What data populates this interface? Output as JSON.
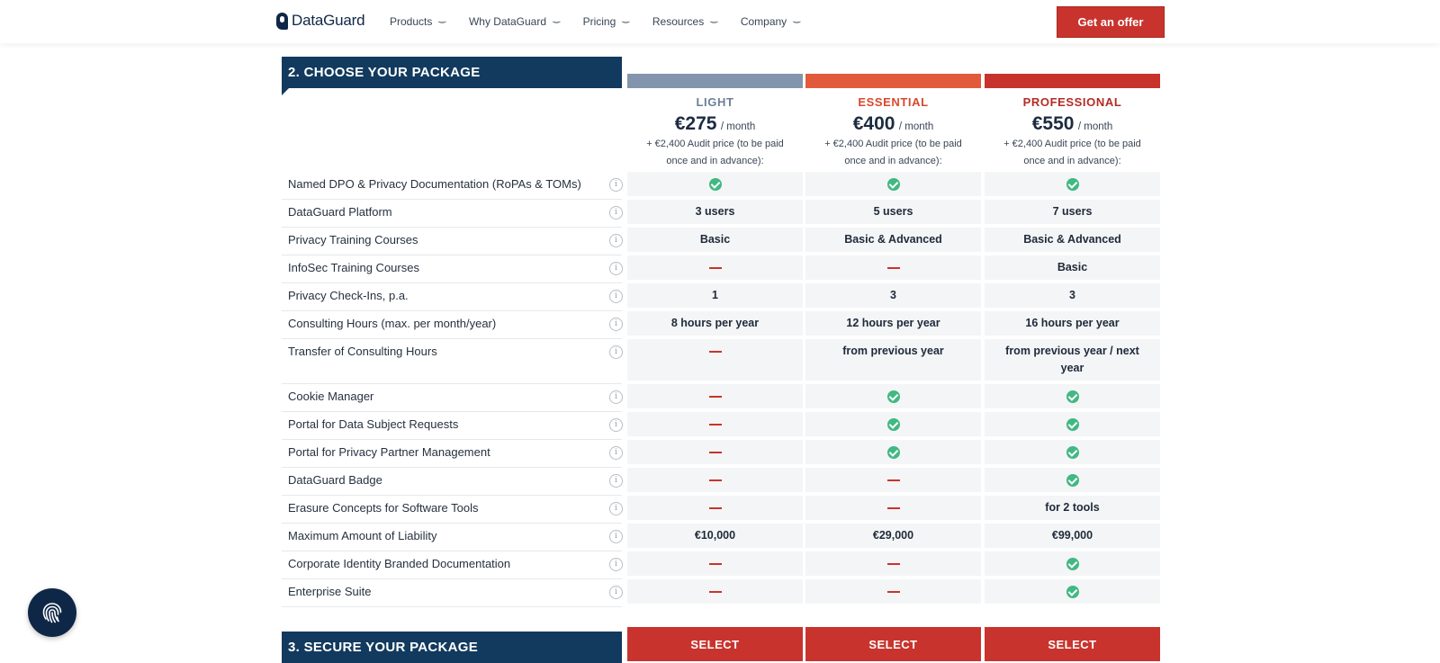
{
  "header": {
    "logo_text": "DataGuard",
    "nav": [
      "Products",
      "Why DataGuard",
      "Pricing",
      "Resources",
      "Company"
    ],
    "cta_label": "Get an offer"
  },
  "section1_title": "2. CHOOSE YOUR PACKAGE",
  "section2_title": "3. SECURE YOUR PACKAGE",
  "plans": [
    {
      "name": "LIGHT",
      "price": "€275",
      "unit": "/ month",
      "note_line1": "+ €2,400 Audit price (to be paid",
      "note_line2": "once and in advance):",
      "bar_color": "#8395ad",
      "name_color": "#6b7f99",
      "select_label": "SELECT"
    },
    {
      "name": "ESSENTIAL",
      "price": "€400",
      "unit": "/ month",
      "note_line1": "+ €2,400 Audit price (to be paid",
      "note_line2": "once and in advance):",
      "bar_color": "#e25a3c",
      "name_color": "#d9482f",
      "select_label": "SELECT"
    },
    {
      "name": "PROFESSIONAL",
      "price": "€550",
      "unit": "/ month",
      "note_line1": "+ €2,400 Audit price (to be paid",
      "note_line2": "once and in advance):",
      "bar_color": "#c7332c",
      "name_color": "#b42b25",
      "select_label": "SELECT"
    }
  ],
  "features": [
    {
      "label": "Named DPO & Privacy Documentation (RoPAs & TOMs)",
      "values": [
        "check",
        "check",
        "check"
      ]
    },
    {
      "label": "DataGuard Platform",
      "values": [
        "3 users",
        "5 users",
        "7 users"
      ]
    },
    {
      "label": "Privacy Training Courses",
      "values": [
        "Basic",
        "Basic & Advanced",
        "Basic & Advanced"
      ]
    },
    {
      "label": "InfoSec Training Courses",
      "values": [
        "dash",
        "dash",
        "Basic"
      ]
    },
    {
      "label": "Privacy Check-Ins, p.a.",
      "values": [
        "1",
        "3",
        "3"
      ]
    },
    {
      "label": "Consulting Hours (max. per month/year)",
      "values": [
        "8 hours per year",
        "12 hours per year",
        "16 hours per year"
      ]
    },
    {
      "label": "Transfer of Consulting Hours",
      "values": [
        "dash",
        "from previous year",
        "from previous year / next year"
      ]
    },
    {
      "label": "Cookie Manager",
      "values": [
        "dash",
        "check",
        "check"
      ]
    },
    {
      "label": "Portal for Data Subject Requests",
      "values": [
        "dash",
        "check",
        "check"
      ]
    },
    {
      "label": "Portal for Privacy Partner Management",
      "values": [
        "dash",
        "check",
        "check"
      ]
    },
    {
      "label": "DataGuard Badge",
      "values": [
        "dash",
        "dash",
        "check"
      ]
    },
    {
      "label": "Erasure Concepts for Software Tools",
      "values": [
        "dash",
        "dash",
        "for 2 tools"
      ]
    },
    {
      "label": "Maximum Amount of Liability",
      "values": [
        "€10,000",
        "€29,000",
        "€99,000"
      ]
    },
    {
      "label": "Corporate Identity Branded Documentation",
      "values": [
        "dash",
        "dash",
        "check"
      ]
    },
    {
      "label": "Enterprise Suite",
      "values": [
        "dash",
        "dash",
        "check"
      ]
    }
  ]
}
